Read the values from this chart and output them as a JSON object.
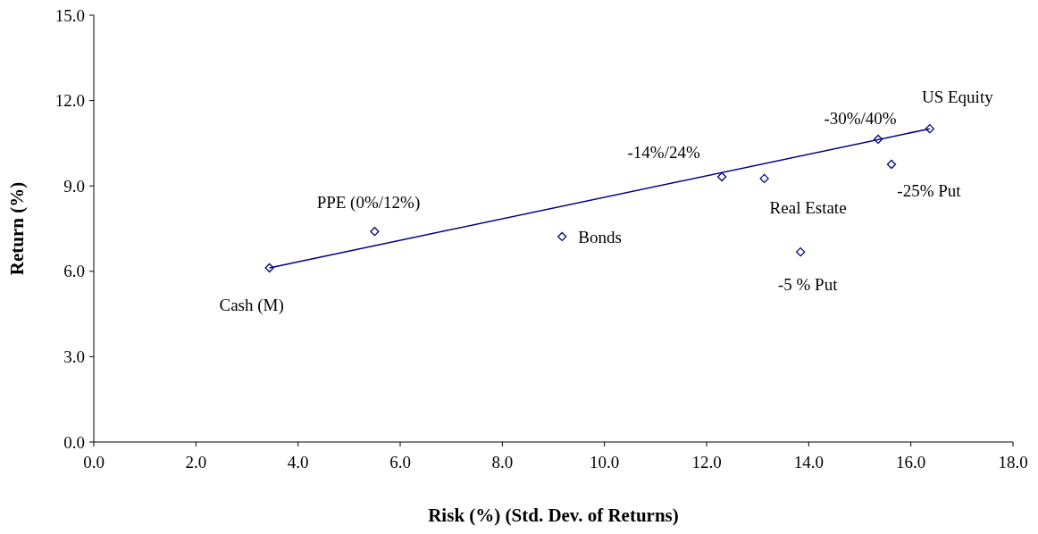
{
  "chart_data": {
    "type": "scatter",
    "xlabel": "Risk (%) (Std. Dev. of Returns)",
    "ylabel": "Return (%)",
    "xlim": [
      0,
      18
    ],
    "xticks": [
      {
        "value": 0,
        "label": "0.0"
      },
      {
        "value": 2,
        "label": "2.0"
      },
      {
        "value": 4,
        "label": "4.0"
      },
      {
        "value": 6,
        "label": "6.0"
      },
      {
        "value": 8,
        "label": "8.0"
      },
      {
        "value": 10,
        "label": "10.0"
      },
      {
        "value": 12,
        "label": "12.0"
      },
      {
        "value": 14,
        "label": "14.0"
      },
      {
        "value": 16,
        "label": "16.0"
      },
      {
        "value": 18,
        "label": "18.0"
      }
    ],
    "ylim": [
      0,
      15
    ],
    "yticks": [
      {
        "value": 0,
        "label": "0.0"
      },
      {
        "value": 3,
        "label": "3.0"
      },
      {
        "value": 6,
        "label": "6.0"
      },
      {
        "value": 9,
        "label": "9.0"
      },
      {
        "value": 12,
        "label": "12.0"
      },
      {
        "value": 15,
        "label": "15.0"
      }
    ],
    "grid": false,
    "series": [
      {
        "color": "#000080",
        "marker": "diamond",
        "x": [
          3.44,
          5.5,
          9.17,
          12.3,
          13.13,
          13.84,
          15.36,
          15.62,
          16.37
        ],
        "values": [
          6.12,
          7.4,
          7.22,
          9.32,
          9.26,
          6.68,
          10.64,
          9.76,
          11.01
        ]
      },
      {
        "type": "line",
        "color": "#000080",
        "marker": "none",
        "line_style": "solid",
        "x": [
          3.44,
          16.37
        ],
        "values": [
          6.12,
          11.01
        ]
      }
    ],
    "annotations": [
      {
        "text": "Cash (M)",
        "x": 3.44,
        "y": 6.12
      },
      {
        "text": "PPE (0%/12%)",
        "x": 5.5,
        "y": 7.4
      },
      {
        "text": "Bonds",
        "x": 9.17,
        "y": 7.22
      },
      {
        "text": "-14%/24%",
        "x": 12.3,
        "y": 9.32
      },
      {
        "text": "Real Estate",
        "x": 13.13,
        "y": 9.26
      },
      {
        "text": "-5 % Put",
        "x": 13.84,
        "y": 6.68
      },
      {
        "text": "-30%/40%",
        "x": 15.36,
        "y": 10.64
      },
      {
        "text": "-25% Put",
        "x": 15.62,
        "y": 9.76
      },
      {
        "text": "US Equity",
        "x": 16.37,
        "y": 11.01
      }
    ]
  }
}
